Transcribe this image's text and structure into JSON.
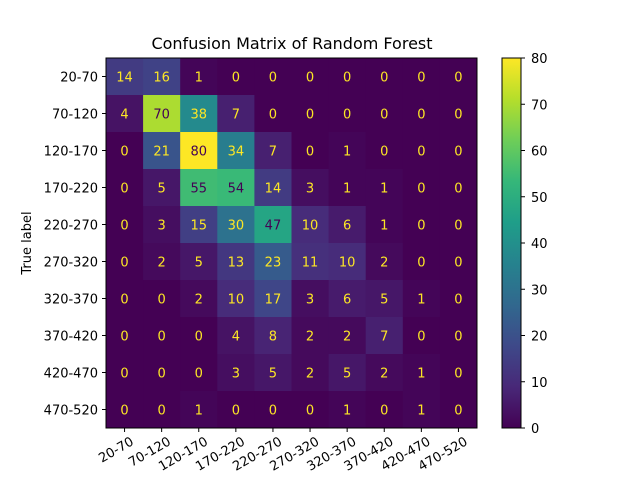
{
  "chart_data": {
    "type": "heatmap",
    "title": "Confusion Matrix of Random Forest",
    "ylabel": "True label",
    "xlabel": "",
    "categories": [
      "20-70",
      "70-120",
      "120-170",
      "170-220",
      "220-270",
      "270-320",
      "320-370",
      "370-420",
      "420-470",
      "470-520"
    ],
    "matrix": [
      [
        14,
        16,
        1,
        0,
        0,
        0,
        0,
        0,
        0,
        0
      ],
      [
        4,
        70,
        38,
        7,
        0,
        0,
        0,
        0,
        0,
        0
      ],
      [
        0,
        21,
        80,
        34,
        7,
        0,
        1,
        0,
        0,
        0
      ],
      [
        0,
        5,
        55,
        54,
        14,
        3,
        1,
        1,
        0,
        0
      ],
      [
        0,
        3,
        15,
        30,
        47,
        10,
        6,
        1,
        0,
        0
      ],
      [
        0,
        2,
        5,
        13,
        23,
        11,
        10,
        2,
        0,
        0
      ],
      [
        0,
        0,
        2,
        10,
        17,
        3,
        6,
        5,
        1,
        0
      ],
      [
        0,
        0,
        0,
        4,
        8,
        2,
        2,
        7,
        0,
        0
      ],
      [
        0,
        0,
        0,
        3,
        5,
        2,
        5,
        2,
        1,
        0
      ],
      [
        0,
        0,
        1,
        0,
        0,
        0,
        1,
        0,
        1,
        0
      ]
    ],
    "colormap": "viridis",
    "vmin": 0,
    "vmax": 80,
    "colorbar_ticks": [
      0,
      10,
      20,
      30,
      40,
      50,
      60,
      70,
      80
    ]
  }
}
